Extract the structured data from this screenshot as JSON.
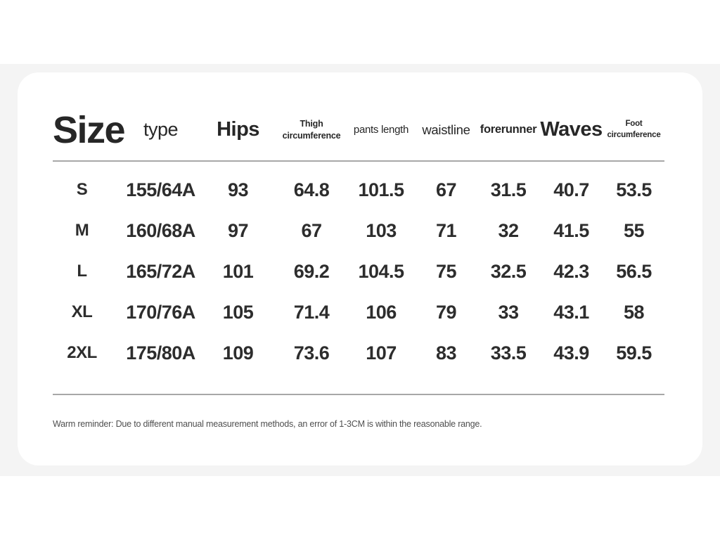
{
  "colors": {
    "page_background": "#ffffff",
    "band_background": "#f4f4f4",
    "card_background": "#ffffff",
    "text_dark": "#2d2d2d",
    "divider_gray": "#a8a8a8",
    "note_gray": "#4f4f4f"
  },
  "card": {
    "title": "Size",
    "headers": {
      "type": "type",
      "hips": "Hips",
      "thigh": "Thigh circumference",
      "pants": "pants length",
      "waistline": "waistline",
      "forerunner": "forerunner",
      "waves": "Waves",
      "foot": "Foot circumference"
    },
    "rows": [
      {
        "size": "S",
        "type": "155/64A",
        "hips": "93",
        "thigh": "64.8",
        "pants": "101.5",
        "waistline": "67",
        "forerunner": "31.5",
        "waves": "40.7",
        "foot": "53.5"
      },
      {
        "size": "M",
        "type": "160/68A",
        "hips": "97",
        "thigh": "67",
        "pants": "103",
        "waistline": "71",
        "forerunner": "32",
        "waves": "41.5",
        "foot": "55"
      },
      {
        "size": "L",
        "type": "165/72A",
        "hips": "101",
        "thigh": "69.2",
        "pants": "104.5",
        "waistline": "75",
        "forerunner": "32.5",
        "waves": "42.3",
        "foot": "56.5"
      },
      {
        "size": "XL",
        "type": "170/76A",
        "hips": "105",
        "thigh": "71.4",
        "pants": "106",
        "waistline": "79",
        "forerunner": "33",
        "waves": "43.1",
        "foot": "58"
      },
      {
        "size": "2XL",
        "type": "175/80A",
        "hips": "109",
        "thigh": "73.6",
        "pants": "107",
        "waistline": "83",
        "forerunner": "33.5",
        "waves": "43.9",
        "foot": "59.5"
      }
    ],
    "note": "Warm reminder: Due to different manual measurement methods, an error of 1-3CM is within the reasonable range."
  }
}
